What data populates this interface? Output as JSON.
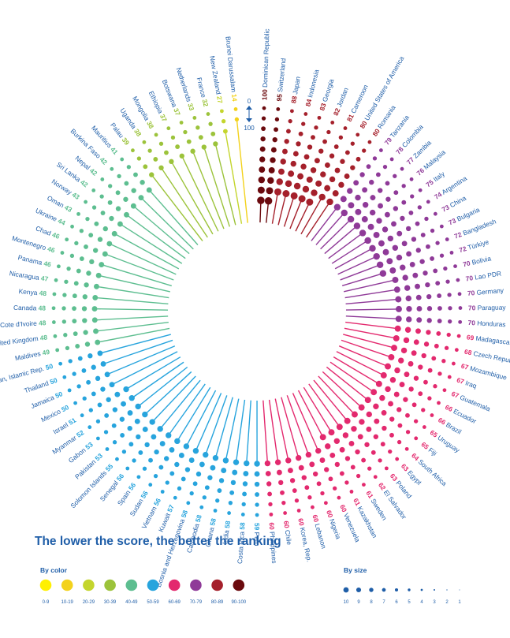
{
  "headline": "The lower the score, the better the ranking",
  "scale_labels": {
    "top": "0",
    "bottom": "100"
  },
  "legend": {
    "color_title": "By color",
    "size_title": "By size",
    "color_bins": [
      {
        "label": "0-9",
        "color": "#fff000"
      },
      {
        "label": "10-19",
        "color": "#f3d21c"
      },
      {
        "label": "20-29",
        "color": "#c4d52d"
      },
      {
        "label": "30-39",
        "color": "#9cc33b"
      },
      {
        "label": "40-49",
        "color": "#5dbe90"
      },
      {
        "label": "50-59",
        "color": "#27a4dd"
      },
      {
        "label": "60-69",
        "color": "#e3296e"
      },
      {
        "label": "70-79",
        "color": "#8f3a98"
      },
      {
        "label": "80-89",
        "color": "#a5202b"
      },
      {
        "label": "90-100",
        "color": "#6b0a0e"
      }
    ],
    "size_bins": [
      "10",
      "9",
      "8",
      "7",
      "6",
      "5",
      "4",
      "3",
      "2",
      "1"
    ]
  },
  "chart_data": {
    "type": "radial-lollipop",
    "x_field": "country",
    "y_field": "score",
    "y_range": [
      0,
      100
    ],
    "categories": [
      "Dominican Republic",
      "Switzerland",
      "Japan",
      "Indonesia",
      "Georgia",
      "Jordan",
      "Cameroon",
      "United States of America",
      "Romania",
      "Tanzania",
      "Colombia",
      "Zambia",
      "Malaysia",
      "Italy",
      "Argentina",
      "China",
      "Bulgaria",
      "Bangladesh",
      "Türkiye",
      "Bolivia",
      "Lao PDR",
      "Germany",
      "Paraguay",
      "Honduras",
      "Madagascar",
      "Czech Republic",
      "Mozambique",
      "Iraq",
      "Guatemala",
      "Ecuador",
      "Brazil",
      "Uruguay",
      "Fiji",
      "South Africa",
      "Egypt",
      "Poland",
      "El Salvador",
      "Sweden",
      "Kazakhstan",
      "Venezuela",
      "Nigeria",
      "Lebanon",
      "Korea, Rep.",
      "Chile",
      "Philippines",
      "Peru",
      "Costa Rica",
      "India",
      "Ghana",
      "Cambodia",
      "Bosnia and Herzegovina",
      "Kuwait",
      "Vietnam",
      "Sudan",
      "Spain",
      "Senegal",
      "Solomon Islands",
      "Pakistan",
      "Gabon",
      "Myanmar",
      "Israel",
      "Mexico",
      "Jamaica",
      "Thailand",
      "Iran, Islamic Rep.",
      "Maldives",
      "United Kingdom",
      "Cote d'Ivoire",
      "Canada",
      "Kenya",
      "Nicaragua",
      "Panama",
      "Montenegro",
      "Chad",
      "Ukraine",
      "Oman",
      "Norway",
      "Sri Lanka",
      "Nepal",
      "Burkina Faso",
      "Mauritius",
      "Palau",
      "Uganda",
      "Mongolia",
      "Ethiopia",
      "Botswana",
      "Netherlands",
      "France",
      "New Zealand",
      "Brunei Darussalam"
    ],
    "values": [
      100,
      95,
      88,
      84,
      83,
      82,
      81,
      80,
      80,
      79,
      78,
      77,
      76,
      75,
      74,
      73,
      73,
      72,
      72,
      70,
      70,
      70,
      70,
      70,
      69,
      68,
      67,
      67,
      67,
      66,
      66,
      65,
      65,
      64,
      63,
      63,
      62,
      61,
      61,
      60,
      60,
      60,
      60,
      60,
      60,
      59,
      58,
      58,
      58,
      58,
      58,
      57,
      56,
      56,
      56,
      56,
      55,
      53,
      53,
      52,
      51,
      50,
      50,
      50,
      50,
      49,
      48,
      48,
      48,
      48,
      47,
      46,
      46,
      46,
      44,
      43,
      43,
      42,
      42,
      42,
      41,
      39,
      38,
      38,
      37,
      37,
      33,
      32,
      27,
      14
    ]
  }
}
